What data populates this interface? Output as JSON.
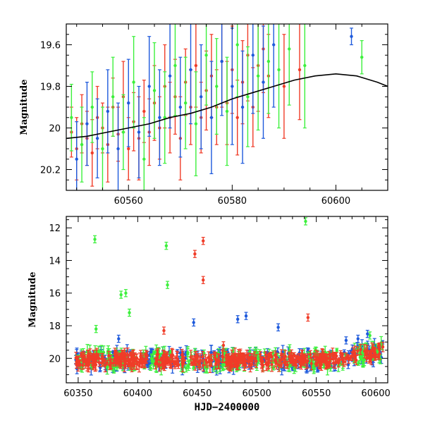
{
  "colors": {
    "green": "#3cf03c",
    "red": "#f03c28",
    "blue": "#1e5adc",
    "model": "#000000"
  },
  "chart_data": [
    {
      "type": "scatter",
      "ylabel": "Magnitude",
      "xlabel": "",
      "xlim": [
        60548,
        60610
      ],
      "ylim": [
        20.3,
        19.5
      ],
      "y_inverted": true,
      "xticks": [
        "60560",
        "60580",
        "60600"
      ],
      "yticks": [
        "19.6",
        "19.8",
        "20",
        "20.2"
      ],
      "model_curve": {
        "x": [
          60548,
          60552,
          60556,
          60560,
          60564,
          60568,
          60572,
          60576,
          60580,
          60584,
          60588,
          60592,
          60596,
          60600,
          60604,
          60608,
          60610
        ],
        "y": [
          20.05,
          20.04,
          20.02,
          20.0,
          19.98,
          19.95,
          19.93,
          19.9,
          19.86,
          19.83,
          19.8,
          19.77,
          19.75,
          19.74,
          19.75,
          19.78,
          19.8
        ]
      },
      "series": [
        {
          "color": "red",
          "points": [
            [
              60549,
              20.02,
              0.12
            ],
            [
              60550,
              20.1,
              0.15
            ],
            [
              60551,
              19.98,
              0.14
            ],
            [
              60552,
              20.05,
              0.13
            ],
            [
              60553,
              20.12,
              0.16
            ],
            [
              60554,
              19.95,
              0.15
            ],
            [
              60555,
              20.0,
              0.12
            ],
            [
              60556,
              20.08,
              0.18
            ],
            [
              60557,
              19.9,
              0.14
            ],
            [
              60558,
              20.03,
              0.13
            ],
            [
              60559,
              19.85,
              0.17
            ],
            [
              60560,
              20.1,
              0.15
            ],
            [
              60561,
              19.97,
              0.14
            ],
            [
              60562,
              20.05,
              0.2
            ],
            [
              60563,
              19.92,
              0.15
            ],
            [
              60564,
              20.02,
              0.16
            ],
            [
              60565,
              19.88,
              0.18
            ],
            [
              60566,
              20.0,
              0.15
            ],
            [
              60567,
              19.8,
              0.2
            ],
            [
              60568,
              19.95,
              0.17
            ],
            [
              60569,
              19.85,
              0.18
            ],
            [
              60570,
              20.05,
              0.2
            ],
            [
              60571,
              19.78,
              0.16
            ],
            [
              60572,
              19.9,
              0.18
            ],
            [
              60573,
              19.7,
              0.2
            ],
            [
              60574,
              19.95,
              0.17
            ],
            [
              60575,
              19.82,
              0.19
            ],
            [
              60576,
              19.75,
              0.2
            ],
            [
              60577,
              19.9,
              0.18
            ],
            [
              60578,
              19.68,
              0.22
            ],
            [
              60579,
              19.88,
              0.2
            ],
            [
              60580,
              19.72,
              0.21
            ],
            [
              60581,
              19.95,
              0.18
            ],
            [
              60582,
              19.78,
              0.2
            ],
            [
              60583,
              19.65,
              0.22
            ],
            [
              60584,
              19.9,
              0.19
            ],
            [
              60585,
              19.7,
              0.22
            ],
            [
              60586,
              19.62,
              0.21
            ],
            [
              60587,
              19.75,
              0.2
            ],
            [
              60590,
              19.8,
              0.25
            ],
            [
              60593,
              19.72,
              0.24
            ]
          ]
        },
        {
          "color": "green",
          "points": [
            [
              60549,
              19.95,
              0.16
            ],
            [
              60551,
              20.08,
              0.18
            ],
            [
              60553,
              19.9,
              0.17
            ],
            [
              60555,
              20.1,
              0.2
            ],
            [
              60557,
              19.85,
              0.19
            ],
            [
              60559,
              20.02,
              0.18
            ],
            [
              60561,
              19.78,
              0.22
            ],
            [
              60563,
              20.15,
              0.2
            ],
            [
              60565,
              19.82,
              0.23
            ],
            [
              60567,
              19.95,
              0.22
            ],
            [
              60569,
              19.7,
              0.24
            ],
            [
              60571,
              19.88,
              0.22
            ],
            [
              60573,
              19.98,
              0.25
            ],
            [
              60575,
              19.65,
              0.24
            ],
            [
              60577,
              19.8,
              0.23
            ],
            [
              60579,
              19.92,
              0.26
            ],
            [
              60581,
              19.6,
              0.25
            ],
            [
              60583,
              19.85,
              0.24
            ],
            [
              60585,
              19.75,
              0.26
            ],
            [
              60587,
              19.68,
              0.25
            ],
            [
              60589,
              19.72,
              0.28
            ],
            [
              60591,
              19.62,
              0.27
            ],
            [
              60594,
              19.7,
              0.3
            ],
            [
              60605,
              19.66,
              0.08
            ]
          ]
        },
        {
          "color": "blue",
          "points": [
            [
              60550,
              20.15,
              0.18
            ],
            [
              60552,
              19.98,
              0.2
            ],
            [
              60554,
              20.05,
              0.19
            ],
            [
              60556,
              19.92,
              0.2
            ],
            [
              60558,
              20.1,
              0.22
            ],
            [
              60560,
              19.88,
              0.21
            ],
            [
              60562,
              20.02,
              0.22
            ],
            [
              60564,
              19.8,
              0.24
            ],
            [
              60566,
              19.95,
              0.23
            ],
            [
              60568,
              19.75,
              0.25
            ],
            [
              60570,
              19.9,
              0.24
            ],
            [
              60572,
              19.72,
              0.26
            ],
            [
              60574,
              19.85,
              0.25
            ],
            [
              60576,
              19.95,
              0.27
            ],
            [
              60578,
              19.68,
              0.26
            ],
            [
              60580,
              19.8,
              0.28
            ],
            [
              60582,
              19.9,
              0.27
            ],
            [
              60584,
              19.65,
              0.28
            ],
            [
              60586,
              19.78,
              0.27
            ],
            [
              60588,
              19.6,
              0.3
            ],
            [
              60603,
              19.56,
              0.04
            ]
          ]
        }
      ]
    },
    {
      "type": "scatter",
      "ylabel": "Magnitude",
      "xlabel": "HJD−2400000",
      "xlim": [
        60340,
        60610
      ],
      "ylim": [
        21.5,
        11.3
      ],
      "y_inverted": true,
      "xticks": [
        "60350",
        "60400",
        "60450",
        "60500",
        "60550",
        "60600"
      ],
      "yticks": [
        "12",
        "14",
        "16",
        "18",
        "20"
      ],
      "outliers": [
        {
          "color": "green",
          "points": [
            [
              60364,
              12.7
            ],
            [
              60365,
              18.2
            ],
            [
              60386,
              16.1
            ],
            [
              60390,
              16.0
            ],
            [
              60393,
              17.2
            ],
            [
              60424,
              13.1
            ],
            [
              60425,
              15.5
            ],
            [
              60541,
              11.6
            ],
            [
              60595,
              18.6
            ]
          ]
        },
        {
          "color": "red",
          "points": [
            [
              60422,
              18.3
            ],
            [
              60448,
              13.6
            ],
            [
              60455,
              12.8
            ],
            [
              60455,
              15.2
            ],
            [
              60472,
              19.2
            ],
            [
              60543,
              17.5
            ]
          ]
        },
        {
          "color": "blue",
          "points": [
            [
              60384,
              18.8
            ],
            [
              60447,
              17.8
            ],
            [
              60484,
              17.6
            ],
            [
              60491,
              17.4
            ],
            [
              60518,
              18.1
            ],
            [
              60575,
              18.9
            ],
            [
              60585,
              18.8
            ],
            [
              60593,
              18.5
            ]
          ]
        }
      ]
    }
  ]
}
